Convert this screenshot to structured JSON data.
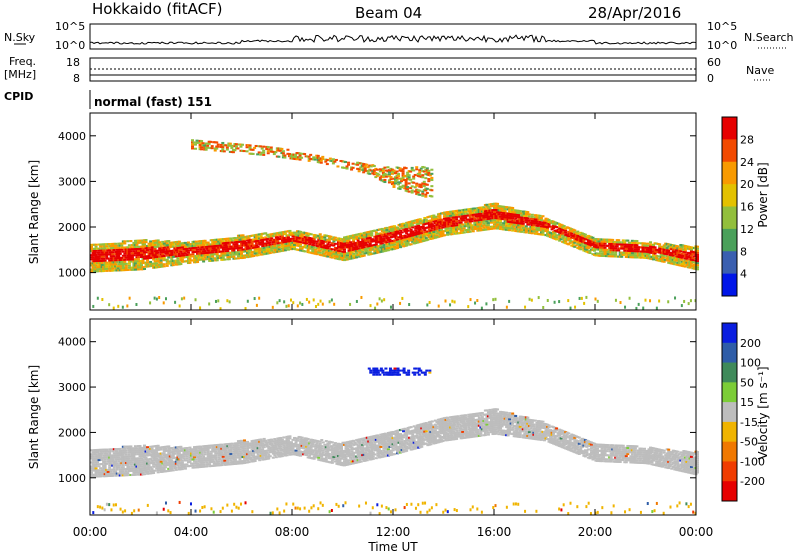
{
  "header": {
    "station": "Hokkaido (fitACF)",
    "beam": "Beam 04",
    "date": "28/Apr/2016"
  },
  "noise_panel": {
    "left_label": "N.Sky",
    "right_label": "N.Search",
    "ticks": [
      "10^5",
      "10^0"
    ]
  },
  "freq_panel": {
    "label_line1": "Freq.",
    "label_line2": "[MHz]",
    "left_ticks": [
      "18",
      "8"
    ],
    "right_ticks": [
      "60",
      "0"
    ],
    "right_label": "Nave"
  },
  "cpid": {
    "label": "CPID",
    "value": "normal (fast) 151"
  },
  "chart_data": [
    {
      "type": "heatmap",
      "name": "power",
      "ylabel": "Slant Range [km]",
      "xlabel": "",
      "x_ticks": [
        "00:00",
        "04:00",
        "08:00",
        "12:00",
        "16:00",
        "20:00",
        "00:00"
      ],
      "xlim_hours": [
        0,
        24
      ],
      "ylim": [
        180,
        4500
      ],
      "y_ticks": [
        1000,
        2000,
        3000,
        4000
      ],
      "colorbar": {
        "label": "Power [dB]",
        "ticks": [
          "28",
          "24",
          "20",
          "16",
          "12",
          "8",
          "4"
        ],
        "colors": [
          "#e60000",
          "#f24a00",
          "#f89a00",
          "#e3c100",
          "#92bf3c",
          "#4aa05a",
          "#3a5fb0",
          "#0016e8"
        ]
      },
      "echo_bands": [
        {
          "name": "ground-scatter band",
          "hours": [
            0,
            2,
            4,
            6,
            8,
            10,
            12,
            14,
            16,
            18,
            20,
            22,
            24
          ],
          "range_low_km": [
            1000,
            1050,
            1200,
            1300,
            1500,
            1250,
            1500,
            1800,
            1950,
            1800,
            1350,
            1300,
            1050
          ],
          "range_high_km": [
            1600,
            1700,
            1650,
            1800,
            1900,
            1750,
            2000,
            2300,
            2500,
            2200,
            1750,
            1650,
            1550
          ],
          "peak_power_db": 28
        },
        {
          "name": "upper band",
          "hours": [
            4,
            7,
            9,
            11,
            12,
            13.5
          ],
          "range_low_km": [
            3700,
            3550,
            3400,
            3150,
            2850,
            2600
          ],
          "range_high_km": [
            3900,
            3750,
            3550,
            3350,
            3300,
            3300
          ],
          "peak_power_db": 24
        }
      ]
    },
    {
      "type": "heatmap",
      "name": "velocity",
      "ylabel": "Slant Range [km]",
      "xlabel": "Time UT",
      "x_ticks": [
        "00:00",
        "04:00",
        "08:00",
        "12:00",
        "16:00",
        "20:00",
        "00:00"
      ],
      "xlim_hours": [
        0,
        24
      ],
      "ylim": [
        180,
        4500
      ],
      "y_ticks": [
        1000,
        2000,
        3000,
        4000
      ],
      "colorbar": {
        "label": "Velocity [m s⁻¹]",
        "ticks": [
          "200",
          "100",
          "50",
          "15",
          "-15",
          "-50",
          "-100",
          "-200"
        ],
        "colors": [
          "#0a1ee0",
          "#2f5da8",
          "#3f8a5a",
          "#7ccd37",
          "#bdbdbd",
          "#f0b400",
          "#f07800",
          "#f03c00",
          "#e60000"
        ]
      },
      "echo_bands": [
        {
          "name": "ground-scatter band",
          "hours": [
            0,
            2,
            4,
            6,
            8,
            10,
            12,
            14,
            16,
            18,
            20,
            22,
            24
          ],
          "range_low_km": [
            1000,
            1050,
            1200,
            1300,
            1500,
            1250,
            1500,
            1800,
            1950,
            1800,
            1350,
            1300,
            1050
          ],
          "range_high_km": [
            1600,
            1700,
            1650,
            1800,
            1900,
            1750,
            2000,
            2300,
            2500,
            2200,
            1750,
            1650,
            1550
          ],
          "velocity_ms": 0
        },
        {
          "name": "upper band",
          "hours": [
            11,
            13.5
          ],
          "range_low_km": [
            3250,
            3250
          ],
          "range_high_km": [
            3400,
            3400
          ],
          "velocity_ms": 200
        }
      ]
    }
  ]
}
